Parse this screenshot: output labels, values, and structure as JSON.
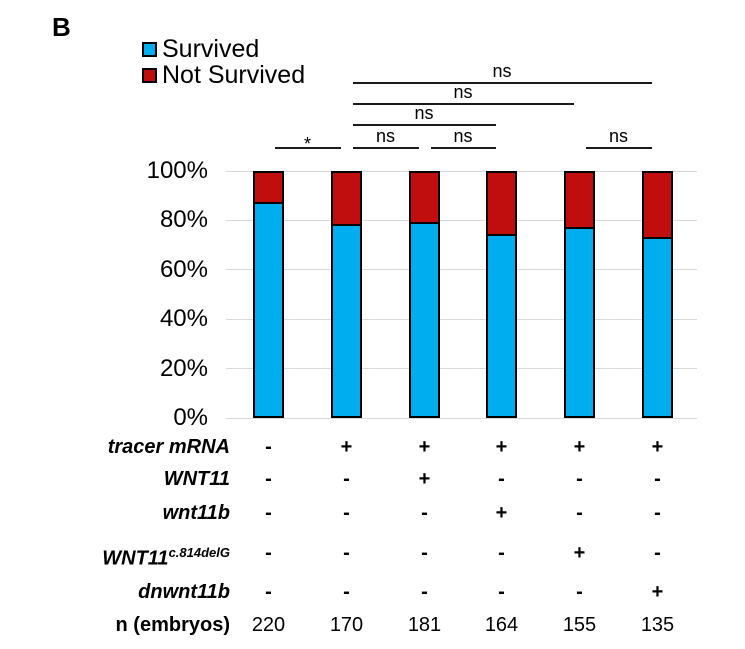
{
  "panel_label": "B",
  "legend": {
    "items": [
      {
        "label": "Survived",
        "color": "#00AEEF"
      },
      {
        "label": "Not Survived",
        "color": "#C00D0D"
      }
    ]
  },
  "chart_data": {
    "type": "bar",
    "stacked": true,
    "percent_stacked": true,
    "title": "",
    "xlabel": "",
    "ylabel": "",
    "ylim": [
      0,
      100
    ],
    "grid": true,
    "legend_position": "top-left",
    "yticks": [
      "100%",
      "80%",
      "60%",
      "40%",
      "20%",
      "0%"
    ],
    "categories": [
      "tracer mRNA −",
      "tracer mRNA +",
      "tracer mRNA + WNT11",
      "tracer mRNA + wnt11b",
      "tracer mRNA + WNT11 c.814delG",
      "tracer mRNA + dnwnt11b"
    ],
    "series": [
      {
        "name": "Survived",
        "color": "#00AEEF",
        "values": [
          87,
          78,
          79,
          74,
          77,
          73
        ]
      },
      {
        "name": "Not Survived",
        "color": "#C00D0D",
        "values": [
          13,
          22,
          21,
          26,
          23,
          27
        ]
      }
    ],
    "significance": [
      {
        "pair": [
          1,
          2
        ],
        "label": "*",
        "level": 0
      },
      {
        "pair": [
          2,
          3
        ],
        "label": "ns",
        "level": 0
      },
      {
        "pair": [
          3,
          4
        ],
        "label": "ns",
        "level": 0
      },
      {
        "pair": [
          5,
          6
        ],
        "label": "ns",
        "level": 0
      },
      {
        "pair": [
          2,
          4
        ],
        "label": "ns",
        "level": 1
      },
      {
        "pair": [
          2,
          5
        ],
        "label": "ns",
        "level": 2
      },
      {
        "pair": [
          2,
          6
        ],
        "label": "ns",
        "level": 3
      }
    ]
  },
  "condition_table": {
    "rows": [
      {
        "label": "tracer mRNA",
        "sup": "",
        "italic": true,
        "values": [
          "-",
          "+",
          "+",
          "+",
          "+",
          "+"
        ]
      },
      {
        "label": "WNT11",
        "sup": "",
        "italic": true,
        "values": [
          "-",
          "-",
          "+",
          "-",
          "-",
          "-"
        ]
      },
      {
        "label": "wnt11b",
        "sup": "",
        "italic": true,
        "values": [
          "-",
          "-",
          "-",
          "+",
          "-",
          "-"
        ]
      },
      {
        "label": "WNT11",
        "sup": "c.814delG",
        "italic": true,
        "values": [
          "-",
          "-",
          "-",
          "-",
          "+",
          "-"
        ]
      },
      {
        "label": "dnwnt11b",
        "sup": "",
        "italic": true,
        "values": [
          "-",
          "-",
          "-",
          "-",
          "-",
          "+"
        ]
      },
      {
        "label": "n (embryos)",
        "sup": "",
        "italic": false,
        "values": [
          "220",
          "170",
          "181",
          "164",
          "155",
          "135"
        ]
      }
    ]
  }
}
